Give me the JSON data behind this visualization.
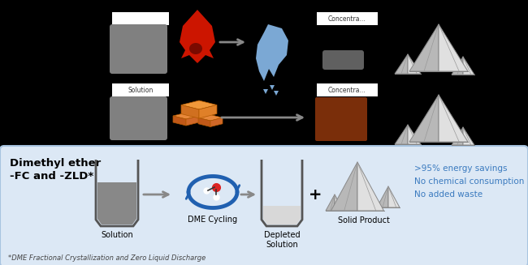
{
  "bg_top": "#000000",
  "bg_bottom": "#dce8f5",
  "bg_bottom_border": "#a8c4e0",
  "title_row1": "Dimethyl ether",
  "title_row2": "-FC and -ZLD*",
  "footnote": "*DME Fractional Crystallization and Zero Liquid Discharge",
  "dme_label": "DME Cycling",
  "solution_label": "Solution",
  "depleted_label": "Depleted\nSolution",
  "solid_label": "Solid Product",
  "benefits": [
    ">95% energy savings",
    "No chemical consumption",
    "No added waste"
  ],
  "benefits_color": "#3a7abf",
  "arrow_color": "#888888",
  "gray_box_color": "#888888",
  "white_box_color": "#ffffff",
  "brown_box_color": "#7a2e0a"
}
